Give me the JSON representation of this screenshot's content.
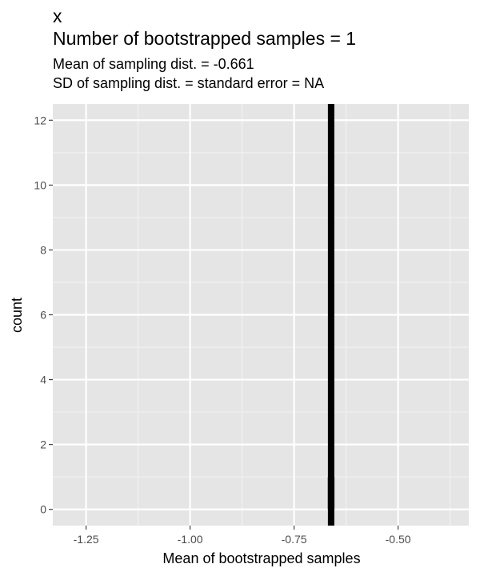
{
  "chart_data": {
    "type": "bar",
    "title_lines": [
      "x",
      "Number of bootstrapped samples = 1"
    ],
    "subtitle_lines": [
      "Mean of sampling dist. = -0.661",
      "SD of sampling dist. = standard error = NA"
    ],
    "xlabel": "Mean of bootstrapped samples",
    "ylabel": "count",
    "xlim": [
      -1.33,
      -0.33
    ],
    "ylim": [
      -0.5,
      12.5
    ],
    "x_ticks": [
      -1.25,
      -1.0,
      -0.75,
      -0.5
    ],
    "x_tick_labels": [
      "-1.25",
      "-1.00",
      "-0.75",
      "-0.50"
    ],
    "y_ticks": [
      0,
      2,
      4,
      6,
      8,
      10,
      12
    ],
    "y_tick_labels": [
      "0",
      "2",
      "4",
      "6",
      "8",
      "10",
      "12"
    ],
    "bins": [
      {
        "x_start": -0.6695,
        "x_end": -0.6525,
        "count": 1
      }
    ],
    "mean_line_x": -0.661,
    "grid": true,
    "colors": {
      "panel_background": "#e5e5e5",
      "grid_major": "#ffffff",
      "grid_minor": "#f2f2f2",
      "bar_fill": "#8c8c8c",
      "mean_line": "#000000",
      "tick_label": "#4d4d4d",
      "tick_mark": "#333333"
    }
  }
}
